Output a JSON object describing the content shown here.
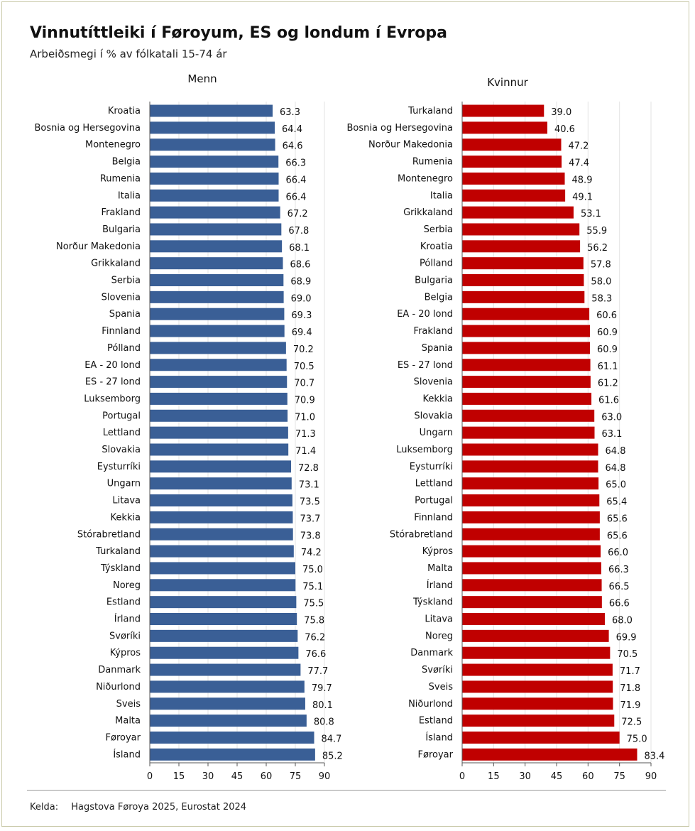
{
  "title": "Vinnutíttleiki í Føroyum, ES og londum í Evropa",
  "subtitle": "Arbeiðsmegi í % av fólkatali 15-74 ár",
  "source": {
    "label": "Kelda:",
    "text": "Hagstova Føroya 2025, Eurostat 2024"
  },
  "chart_data": [
    {
      "type": "bar",
      "orientation": "horizontal",
      "title": "Menn",
      "color": "#3a5f96",
      "xlim": [
        0,
        90
      ],
      "xticks": [
        0,
        15,
        30,
        45,
        60,
        75,
        90
      ],
      "grid": true,
      "categories": [
        "Kroatia",
        "Bosnia og Hersegovina",
        "Montenegro",
        "Belgia",
        "Rumenia",
        "Italia",
        "Frakland",
        "Bulgaria",
        "Norður Makedonia",
        "Grikkaland",
        "Serbia",
        "Slovenia",
        "Spania",
        "Finnland",
        "Pólland",
        "EA - 20 lond",
        "ES - 27 lond",
        "Luksemborg",
        "Portugal",
        "Lettland",
        "Slovakia",
        "Eysturríki",
        "Ungarn",
        "Litava",
        "Kekkia",
        "Stórabretland",
        "Turkaland",
        "Týskland",
        "Noreg",
        "Estland",
        "Írland",
        "Svøríki",
        "Kýpros",
        "Danmark",
        "Niðurlond",
        "Sveis",
        "Malta",
        "Føroyar",
        "Ísland"
      ],
      "values": [
        63.3,
        64.4,
        64.6,
        66.3,
        66.4,
        66.4,
        67.2,
        67.8,
        68.1,
        68.6,
        68.9,
        69.0,
        69.3,
        69.4,
        70.2,
        70.5,
        70.7,
        70.9,
        71.0,
        71.3,
        71.4,
        72.8,
        73.1,
        73.5,
        73.7,
        73.8,
        74.2,
        75.0,
        75.1,
        75.5,
        75.8,
        76.2,
        76.6,
        77.7,
        79.7,
        80.1,
        80.8,
        84.7,
        85.2
      ]
    },
    {
      "type": "bar",
      "orientation": "horizontal",
      "title": "Kvinnur",
      "color": "#c00000",
      "xlim": [
        0,
        90
      ],
      "xticks": [
        0,
        15,
        30,
        45,
        60,
        75,
        90
      ],
      "grid": true,
      "categories": [
        "Turkaland",
        "Bosnia og Hersegovina",
        "Norður Makedonia",
        "Rumenia",
        "Montenegro",
        "Italia",
        "Grikkaland",
        "Serbia",
        "Kroatia",
        "Pólland",
        "Bulgaria",
        "Belgia",
        "EA - 20 lond",
        "Frakland",
        "Spania",
        "ES - 27 lond",
        "Slovenia",
        "Kekkia",
        "Slovakia",
        "Ungarn",
        "Luksemborg",
        "Eysturríki",
        "Lettland",
        "Portugal",
        "Finnland",
        "Stórabretland",
        "Kýpros",
        "Malta",
        "Írland",
        "Týskland",
        "Litava",
        "Noreg",
        "Danmark",
        "Svøríki",
        "Sveis",
        "Niðurlond",
        "Estland",
        "Ísland",
        "Føroyar"
      ],
      "values": [
        39.0,
        40.6,
        47.2,
        47.4,
        48.9,
        49.1,
        53.1,
        55.9,
        56.2,
        57.8,
        58.0,
        58.3,
        60.6,
        60.9,
        60.9,
        61.1,
        61.2,
        61.6,
        63.0,
        63.1,
        64.8,
        64.8,
        65.0,
        65.4,
        65.6,
        65.6,
        66.0,
        66.3,
        66.5,
        66.6,
        68.0,
        69.9,
        70.5,
        71.7,
        71.8,
        71.9,
        72.5,
        75.0,
        83.4
      ]
    }
  ]
}
